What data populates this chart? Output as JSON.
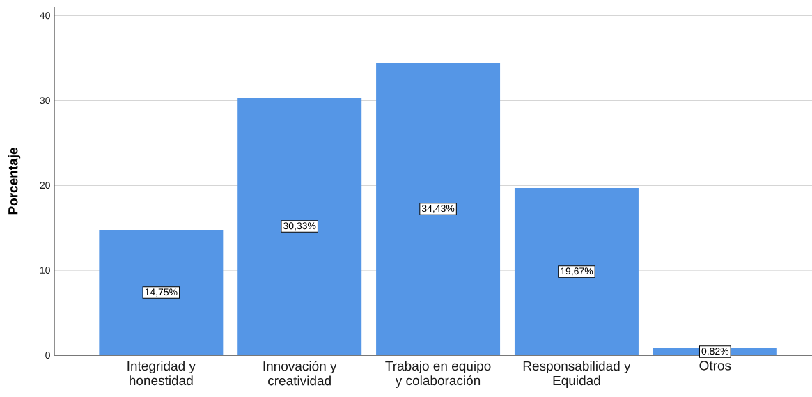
{
  "chart_data": {
    "type": "bar",
    "ylabel": "Porcentaje",
    "categories": [
      "Integridad y honestidad",
      "Innovación y creatividad",
      "Trabajo en equipo y colaboración",
      "Responsabilidad y Equidad",
      "Otros"
    ],
    "values": [
      14.75,
      30.33,
      34.43,
      19.67,
      0.82
    ],
    "value_labels": [
      "14,75%",
      "30,33%",
      "34,43%",
      "19,67%",
      "0,82%"
    ],
    "color": "#5596e6",
    "ylim": [
      0,
      41
    ],
    "yticks": [
      0,
      10,
      20,
      30,
      40
    ],
    "grid": "y"
  }
}
